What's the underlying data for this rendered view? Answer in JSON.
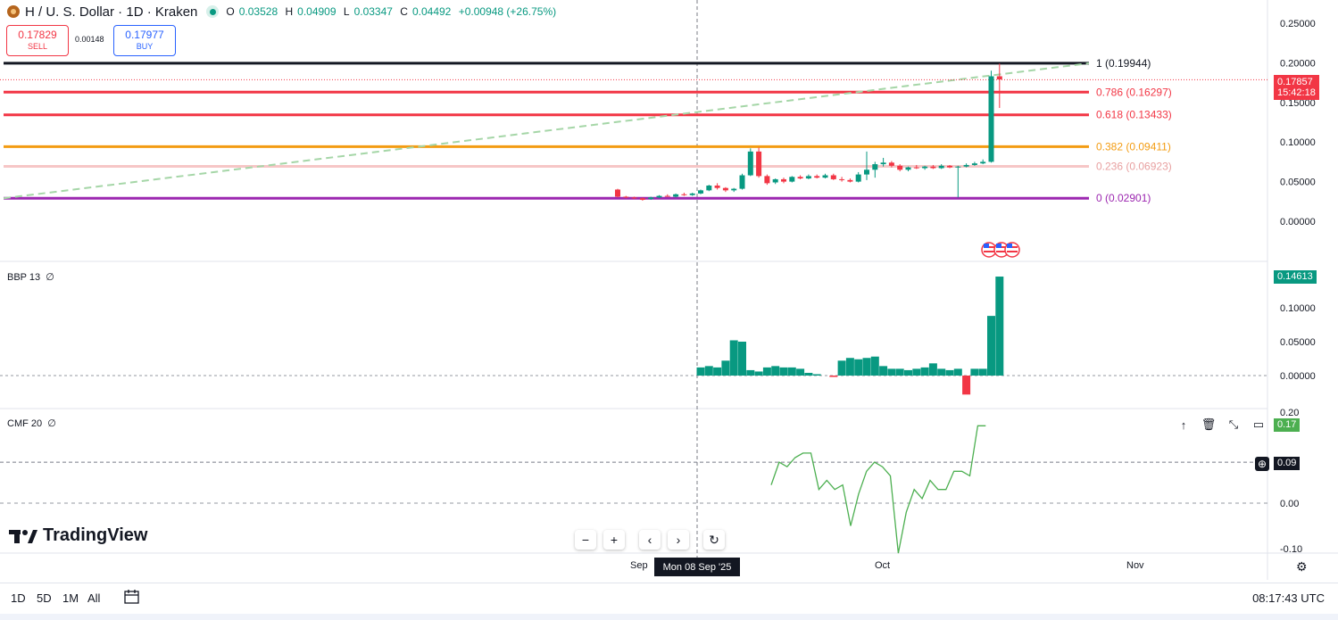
{
  "header": {
    "title": "H / U. S. Dollar · 1D · Kraken",
    "open_label": "O",
    "open": "0.03528",
    "high_label": "H",
    "high": "0.04909",
    "low_label": "L",
    "low": "0.03347",
    "close_label": "C",
    "close": "0.04492",
    "change": "+0.00948 (+26.75%)"
  },
  "trade": {
    "sell_price": "0.17829",
    "sell_label": "SELL",
    "spread": "0.00148",
    "buy_price": "0.17977",
    "buy_label": "BUY"
  },
  "price_axis": {
    "ticks": [
      "0.25000",
      "0.20000",
      "0.15000",
      "0.10000",
      "0.05000",
      "0.00000"
    ],
    "current_price": "0.17857",
    "countdown": "15:42:18"
  },
  "bbp": {
    "label": "BBP 13",
    "symbol": "∅",
    "value": "0.14613",
    "ticks": [
      "0.10000",
      "0.05000",
      "0.00000"
    ]
  },
  "cmf": {
    "label": "CMF 20",
    "symbol": "∅",
    "value": "0.17",
    "crosshair_value": "0.09",
    "ticks": [
      "0.20",
      "0.00",
      "-0.10"
    ]
  },
  "x_axis": {
    "labels": [
      "Sep",
      "Oct",
      "Nov"
    ],
    "crosshair_date": "Mon 08 Sep '25"
  },
  "timeframes": [
    "1D",
    "5D",
    "1M",
    "All"
  ],
  "clock": "08:17:43 UTC",
  "brand": "TradingView",
  "colors": {
    "up": "#089981",
    "down": "#f23645",
    "cmf": "#4caf50",
    "fib1": "#131722",
    "fib786": "#f23645",
    "fib618": "#f23645",
    "fib382": "#f39c12",
    "fib236": "#f6c6c6",
    "fib0": "#9c27b0"
  },
  "chart_data": [
    {
      "type": "candlestick",
      "title": "H / U. S. Dollar · 1D · Kraken",
      "y_range": [
        -0.02,
        0.255
      ],
      "fib_levels": [
        {
          "ratio": "1",
          "price": 0.19944,
          "label": "1 (0.19944)"
        },
        {
          "ratio": "0.786",
          "price": 0.16297,
          "label": "0.786 (0.16297)"
        },
        {
          "ratio": "0.618",
          "price": 0.13433,
          "label": "0.618 (0.13433)"
        },
        {
          "ratio": "0.382",
          "price": 0.09411,
          "label": "0.382 (0.09411)"
        },
        {
          "ratio": "0.236",
          "price": 0.06923,
          "label": "0.236 (0.06923)"
        },
        {
          "ratio": "0",
          "price": 0.02901,
          "label": "0 (0.02901)"
        }
      ],
      "trend_line": [
        [
          0,
          0.029
        ],
        [
          152,
          0.1994
        ]
      ],
      "candles": [
        {
          "day": 0,
          "o": 0.04,
          "h": 0.041,
          "l": 0.03,
          "c": 0.031
        },
        {
          "day": 1,
          "o": 0.031,
          "h": 0.032,
          "l": 0.029,
          "c": 0.03
        },
        {
          "day": 2,
          "o": 0.03,
          "h": 0.031,
          "l": 0.028,
          "c": 0.029
        },
        {
          "day": 3,
          "o": 0.029,
          "h": 0.03,
          "l": 0.026,
          "c": 0.027
        },
        {
          "day": 4,
          "o": 0.028,
          "h": 0.031,
          "l": 0.027,
          "c": 0.03
        },
        {
          "day": 5,
          "o": 0.03,
          "h": 0.033,
          "l": 0.029,
          "c": 0.032
        },
        {
          "day": 6,
          "o": 0.032,
          "h": 0.034,
          "l": 0.031,
          "c": 0.031
        },
        {
          "day": 7,
          "o": 0.031,
          "h": 0.035,
          "l": 0.03,
          "c": 0.034
        },
        {
          "day": 8,
          "o": 0.034,
          "h": 0.036,
          "l": 0.032,
          "c": 0.033
        },
        {
          "day": 9,
          "o": 0.033,
          "h": 0.036,
          "l": 0.032,
          "c": 0.035
        },
        {
          "day": 10,
          "o": 0.035,
          "h": 0.04,
          "l": 0.034,
          "c": 0.039
        },
        {
          "day": 11,
          "o": 0.039,
          "h": 0.046,
          "l": 0.038,
          "c": 0.045
        },
        {
          "day": 12,
          "o": 0.045,
          "h": 0.048,
          "l": 0.04,
          "c": 0.042
        },
        {
          "day": 13,
          "o": 0.042,
          "h": 0.043,
          "l": 0.037,
          "c": 0.039
        },
        {
          "day": 14,
          "o": 0.039,
          "h": 0.042,
          "l": 0.037,
          "c": 0.041
        },
        {
          "day": 15,
          "o": 0.041,
          "h": 0.06,
          "l": 0.04,
          "c": 0.058
        },
        {
          "day": 16,
          "o": 0.058,
          "h": 0.092,
          "l": 0.057,
          "c": 0.088
        },
        {
          "day": 17,
          "o": 0.088,
          "h": 0.093,
          "l": 0.055,
          "c": 0.057
        },
        {
          "day": 18,
          "o": 0.057,
          "h": 0.059,
          "l": 0.046,
          "c": 0.048
        },
        {
          "day": 19,
          "o": 0.049,
          "h": 0.054,
          "l": 0.047,
          "c": 0.053
        },
        {
          "day": 20,
          "o": 0.053,
          "h": 0.055,
          "l": 0.048,
          "c": 0.05
        },
        {
          "day": 21,
          "o": 0.05,
          "h": 0.057,
          "l": 0.049,
          "c": 0.056
        },
        {
          "day": 22,
          "o": 0.056,
          "h": 0.058,
          "l": 0.053,
          "c": 0.054
        },
        {
          "day": 23,
          "o": 0.054,
          "h": 0.059,
          "l": 0.053,
          "c": 0.057
        },
        {
          "day": 24,
          "o": 0.057,
          "h": 0.059,
          "l": 0.054,
          "c": 0.055
        },
        {
          "day": 25,
          "o": 0.055,
          "h": 0.06,
          "l": 0.054,
          "c": 0.058
        },
        {
          "day": 26,
          "o": 0.058,
          "h": 0.06,
          "l": 0.052,
          "c": 0.053
        },
        {
          "day": 27,
          "o": 0.053,
          "h": 0.056,
          "l": 0.05,
          "c": 0.052
        },
        {
          "day": 28,
          "o": 0.052,
          "h": 0.054,
          "l": 0.049,
          "c": 0.05
        },
        {
          "day": 29,
          "o": 0.05,
          "h": 0.062,
          "l": 0.049,
          "c": 0.059
        },
        {
          "day": 30,
          "o": 0.059,
          "h": 0.088,
          "l": 0.052,
          "c": 0.065
        },
        {
          "day": 31,
          "o": 0.065,
          "h": 0.075,
          "l": 0.055,
          "c": 0.072
        },
        {
          "day": 32,
          "o": 0.072,
          "h": 0.08,
          "l": 0.069,
          "c": 0.074
        },
        {
          "day": 33,
          "o": 0.074,
          "h": 0.076,
          "l": 0.068,
          "c": 0.07
        },
        {
          "day": 34,
          "o": 0.07,
          "h": 0.072,
          "l": 0.063,
          "c": 0.065
        },
        {
          "day": 35,
          "o": 0.065,
          "h": 0.069,
          "l": 0.063,
          "c": 0.068
        },
        {
          "day": 36,
          "o": 0.068,
          "h": 0.071,
          "l": 0.066,
          "c": 0.067
        },
        {
          "day": 37,
          "o": 0.067,
          "h": 0.07,
          "l": 0.065,
          "c": 0.069
        },
        {
          "day": 38,
          "o": 0.069,
          "h": 0.071,
          "l": 0.066,
          "c": 0.067
        },
        {
          "day": 39,
          "o": 0.067,
          "h": 0.072,
          "l": 0.066,
          "c": 0.07
        },
        {
          "day": 40,
          "o": 0.07,
          "h": 0.071,
          "l": 0.067,
          "c": 0.068
        },
        {
          "day": 41,
          "o": 0.068,
          "h": 0.07,
          "l": 0.03,
          "c": 0.069
        },
        {
          "day": 42,
          "o": 0.069,
          "h": 0.073,
          "l": 0.068,
          "c": 0.071
        },
        {
          "day": 43,
          "o": 0.071,
          "h": 0.075,
          "l": 0.07,
          "c": 0.073
        },
        {
          "day": 44,
          "o": 0.073,
          "h": 0.078,
          "l": 0.072,
          "c": 0.075
        },
        {
          "day": 45,
          "o": 0.075,
          "h": 0.19,
          "l": 0.074,
          "c": 0.183
        },
        {
          "day": 46,
          "o": 0.183,
          "h": 0.199,
          "l": 0.143,
          "c": 0.179
        }
      ],
      "bbp_bars": [
        0,
        0,
        0,
        0,
        0,
        0,
        0,
        0,
        0,
        0,
        0.012,
        0.014,
        0.012,
        0.022,
        0.052,
        0.05,
        0.008,
        0.006,
        0.012,
        0.014,
        0.012,
        0.012,
        0.01,
        0.004,
        0.002,
        0.0,
        -0.002,
        0.022,
        0.026,
        0.024,
        0.026,
        0.028,
        0.014,
        0.01,
        0.01,
        0.008,
        0.01,
        0.012,
        0.018,
        0.01,
        0.008,
        0.01,
        -0.028,
        0.01,
        0.01,
        0.088,
        0.146
      ],
      "cmf_line": [
        0.04,
        0.09,
        0.08,
        0.1,
        0.11,
        0.11,
        0.03,
        0.05,
        0.03,
        0.04,
        -0.05,
        0.02,
        0.07,
        0.09,
        0.08,
        0.06,
        -0.11,
        -0.02,
        0.03,
        0.01,
        0.05,
        0.03,
        0.03,
        0.07,
        0.07,
        0.06,
        0.17,
        0.17
      ]
    }
  ]
}
